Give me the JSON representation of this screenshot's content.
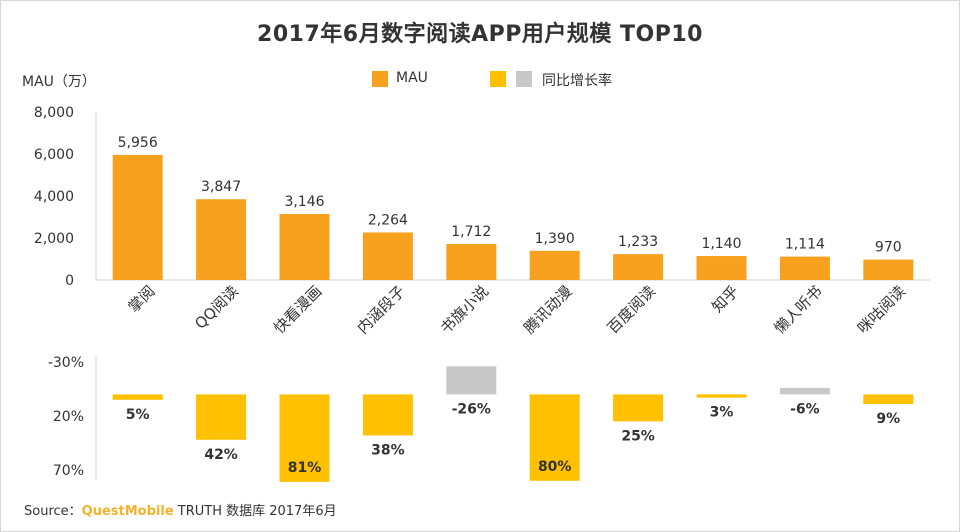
{
  "title": "2017年6月数字阅读APP用户规模 TOP10",
  "y_axis_label": "MAU（万）",
  "legend": {
    "mau": "MAU",
    "growth": "同比增长率",
    "colors": {
      "mau": "#f7a11e",
      "growth_positive": "#ffc000",
      "growth_negative": "#c8c8c8"
    }
  },
  "chart_data": {
    "type": "bar",
    "title": "2017年6月数字阅读APP用户规模 TOP10",
    "categories": [
      "掌阅",
      "QQ阅读",
      "快看漫画",
      "内涵段子",
      "书旗小说",
      "腾讯动漫",
      "百度阅读",
      "知乎",
      "懒人听书",
      "咪咕阅读"
    ],
    "series": [
      {
        "name": "MAU",
        "values": [
          5956,
          3847,
          3146,
          2264,
          1712,
          1390,
          1233,
          1140,
          1114,
          970
        ],
        "labels": [
          "5,956",
          "3,847",
          "3,146",
          "2,264",
          "1,712",
          "1,390",
          "1,233",
          "1,140",
          "1,114",
          "970"
        ],
        "ylim": [
          0,
          8000
        ],
        "yticks": [
          "8,000",
          "6,000",
          "4,000",
          "2,000",
          "0"
        ]
      },
      {
        "name": "同比增长率",
        "values": [
          5,
          42,
          81,
          38,
          -26,
          80,
          25,
          3,
          -6,
          9
        ],
        "labels": [
          "5%",
          "42%",
          "81%",
          "38%",
          "-26%",
          "80%",
          "25%",
          "3%",
          "-6%",
          "9%"
        ],
        "ylim": [
          -30,
          70
        ],
        "yticks": [
          "-30%",
          "20%",
          "70%"
        ]
      }
    ],
    "ylabel": "MAU（万）",
    "xlabel": ""
  },
  "source": {
    "prefix": "Source：",
    "brand": "QuestMobile",
    "suffix": " TRUTH 数据库 2017年6月"
  }
}
